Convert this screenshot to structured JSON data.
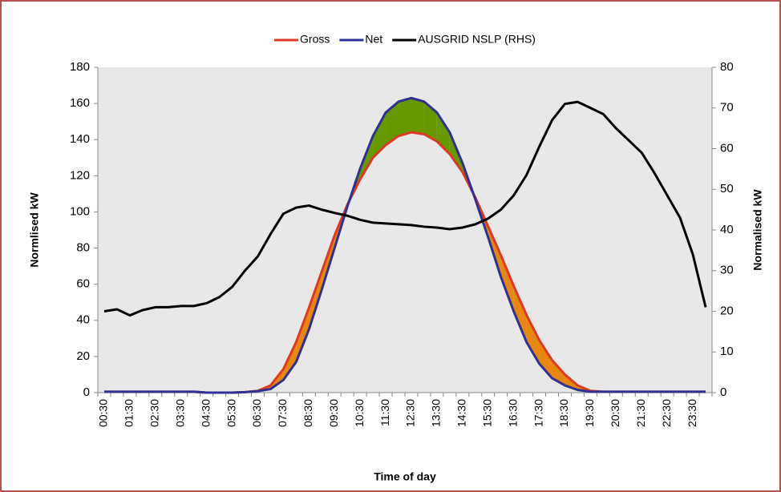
{
  "chart_data": {
    "type": "line",
    "xlabel": "Time of day",
    "ylabel": "Normlised kW",
    "y2label": "Normalised kW",
    "categories": [
      "00:30",
      null,
      "01:30",
      null,
      "02:30",
      null,
      "03:30",
      null,
      "04:30",
      null,
      "05:30",
      null,
      "06:30",
      null,
      "07:30",
      null,
      "08:30",
      null,
      "09:30",
      null,
      "10:30",
      null,
      "11:30",
      null,
      "12:30",
      null,
      "13:30",
      null,
      "14:30",
      null,
      "15:30",
      null,
      "16:30",
      null,
      "17:30",
      null,
      "18:30",
      null,
      "19:30",
      null,
      "20:30",
      null,
      "21:30",
      null,
      "22:30",
      null,
      "23:30",
      null
    ],
    "series": [
      {
        "name": "Gross",
        "color": "#de3a23",
        "values": [
          0.5,
          0.5,
          0.5,
          0.5,
          0.5,
          0.5,
          0.5,
          0.5,
          0,
          0,
          0,
          0.3,
          1,
          4,
          13,
          28,
          47,
          67,
          87,
          104,
          118,
          130,
          137,
          142,
          144,
          143,
          139,
          132,
          122,
          108,
          92,
          76,
          59,
          43,
          29,
          18,
          10,
          4,
          1,
          0.5,
          0.5,
          0.5,
          0.5,
          0.5,
          0.5,
          0.5,
          0.5,
          0.5
        ]
      },
      {
        "name": "Net",
        "color": "#2e3192",
        "values": [
          0.5,
          0.5,
          0.5,
          0.5,
          0.5,
          0.5,
          0.5,
          0.5,
          0,
          0,
          0,
          0.3,
          0.8,
          2,
          7,
          17,
          35,
          57,
          80,
          103,
          124,
          142,
          155,
          161,
          163,
          161,
          155,
          144,
          127,
          107,
          86,
          64,
          45,
          28,
          16,
          8,
          4,
          1.5,
          0.5,
          0.5,
          0.5,
          0.5,
          0.5,
          0.5,
          0.5,
          0.5,
          0.5,
          0.5
        ]
      },
      {
        "name": "AUSGRID NSLP (RHS)",
        "color": "#000000",
        "axis": "y2",
        "values": [
          20,
          20.5,
          19,
          20.3,
          21,
          21,
          21.3,
          21.3,
          22,
          23.5,
          26,
          30,
          33.5,
          39,
          44,
          45.5,
          46,
          45,
          44.2,
          43.5,
          42.5,
          41.8,
          41.6,
          41.4,
          41.2,
          40.8,
          40.6,
          40.2,
          40.6,
          41.4,
          42.8,
          45,
          48.5,
          53.5,
          60.5,
          67,
          71,
          71.5,
          70,
          68.5,
          65,
          62,
          59,
          54,
          48.5,
          43,
          34,
          21
        ]
      }
    ],
    "fill_net_above_gross": "#669900",
    "fill_gross_above_net": "#e8870e",
    "ylim": [
      0,
      180
    ],
    "yticks": [
      0,
      20,
      40,
      60,
      80,
      100,
      120,
      140,
      160,
      180
    ],
    "y2lim": [
      0,
      80
    ],
    "y2ticks": [
      0,
      10,
      20,
      30,
      40,
      50,
      60,
      70,
      80
    ],
    "plot_background": "#e8e8e8",
    "border_color": "#c0504d"
  }
}
